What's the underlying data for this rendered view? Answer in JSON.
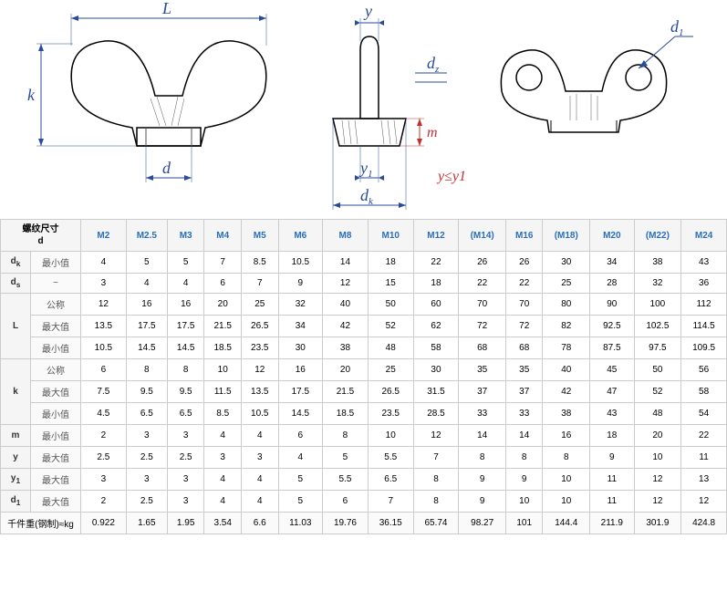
{
  "diagram": {
    "labels": {
      "L": "L",
      "k": "k",
      "d": "d",
      "y": "y",
      "dz": "d",
      "dz_sub": "z",
      "m": "m",
      "y1": "y",
      "y1_sub": "1",
      "dk": "d",
      "dk_sub": "k",
      "d1": "d",
      "d1_sub": "1",
      "constraint": "y≤y1"
    },
    "colors": {
      "line": "#000000",
      "dim": "#2a4a9a",
      "red": "#c03030",
      "hatch": "#555"
    }
  },
  "table": {
    "header_label": "螺纹尺寸\nd",
    "columns": [
      "M2",
      "M2.5",
      "M3",
      "M4",
      "M5",
      "M6",
      "M8",
      "M10",
      "M12",
      "(M14)",
      "M16",
      "(M18)",
      "M20",
      "(M22)",
      "M24"
    ],
    "groups": [
      {
        "symbol": "d",
        "sub": "k",
        "rows": [
          {
            "label": "最小值",
            "vals": [
              4,
              5,
              5,
              7,
              8.5,
              10.5,
              14,
              18,
              22,
              26,
              26,
              30,
              34,
              38,
              43
            ]
          }
        ]
      },
      {
        "symbol": "d",
        "sub": "s",
        "rows": [
          {
            "label": "~",
            "vals": [
              3,
              4,
              4,
              6,
              7,
              9,
              12,
              15,
              18,
              22,
              22,
              25,
              28,
              32,
              36
            ]
          }
        ]
      },
      {
        "symbol": "L",
        "rows": [
          {
            "label": "公称",
            "vals": [
              12,
              16,
              16,
              20,
              25,
              32,
              40,
              50,
              60,
              70,
              70,
              80,
              90,
              100,
              112
            ]
          },
          {
            "label": "最大值",
            "vals": [
              13.5,
              17.5,
              17.5,
              21.5,
              26.5,
              34,
              42,
              52,
              62,
              72,
              72,
              82,
              92.5,
              102.5,
              114.5
            ]
          },
          {
            "label": "最小值",
            "vals": [
              10.5,
              14.5,
              14.5,
              18.5,
              23.5,
              30,
              38,
              48,
              58,
              68,
              68,
              78,
              87.5,
              97.5,
              109.5
            ]
          }
        ]
      },
      {
        "symbol": "k",
        "rows": [
          {
            "label": "公称",
            "vals": [
              6,
              8,
              8,
              10,
              12,
              16,
              20,
              25,
              30,
              35,
              35,
              40,
              45,
              50,
              56
            ]
          },
          {
            "label": "最大值",
            "vals": [
              7.5,
              9.5,
              9.5,
              11.5,
              13.5,
              17.5,
              21.5,
              26.5,
              31.5,
              37,
              37,
              42,
              47,
              52,
              58
            ]
          },
          {
            "label": "最小值",
            "vals": [
              4.5,
              6.5,
              6.5,
              8.5,
              10.5,
              14.5,
              18.5,
              23.5,
              28.5,
              33,
              33,
              38,
              43,
              48,
              54
            ]
          }
        ]
      },
      {
        "symbol": "m",
        "rows": [
          {
            "label": "最小值",
            "vals": [
              2,
              3,
              3,
              4,
              4,
              6,
              8,
              10,
              12,
              14,
              14,
              16,
              18,
              20,
              22
            ]
          }
        ]
      },
      {
        "symbol": "y",
        "rows": [
          {
            "label": "最大值",
            "vals": [
              2.5,
              2.5,
              2.5,
              3,
              3,
              4,
              5,
              5.5,
              7,
              8,
              8,
              8,
              9,
              10,
              11
            ]
          }
        ]
      },
      {
        "symbol": "y",
        "sub": "1",
        "rows": [
          {
            "label": "最大值",
            "vals": [
              3,
              3,
              3,
              4,
              4,
              5,
              5.5,
              6.5,
              8,
              9,
              9,
              10,
              11,
              12,
              13
            ]
          }
        ]
      },
      {
        "symbol": "d",
        "sub": "1",
        "rows": [
          {
            "label": "最大值",
            "vals": [
              2,
              2.5,
              3,
              4,
              4,
              5,
              6,
              7,
              8,
              9,
              10,
              10,
              11,
              12,
              12
            ]
          }
        ]
      }
    ],
    "footer": {
      "label": "千件重(钢制)≈kg",
      "vals": [
        0.922,
        1.65,
        1.95,
        3.54,
        6.6,
        11.03,
        19.76,
        36.15,
        65.74,
        98.27,
        101,
        144.4,
        211.9,
        301.9,
        424.8
      ]
    }
  }
}
